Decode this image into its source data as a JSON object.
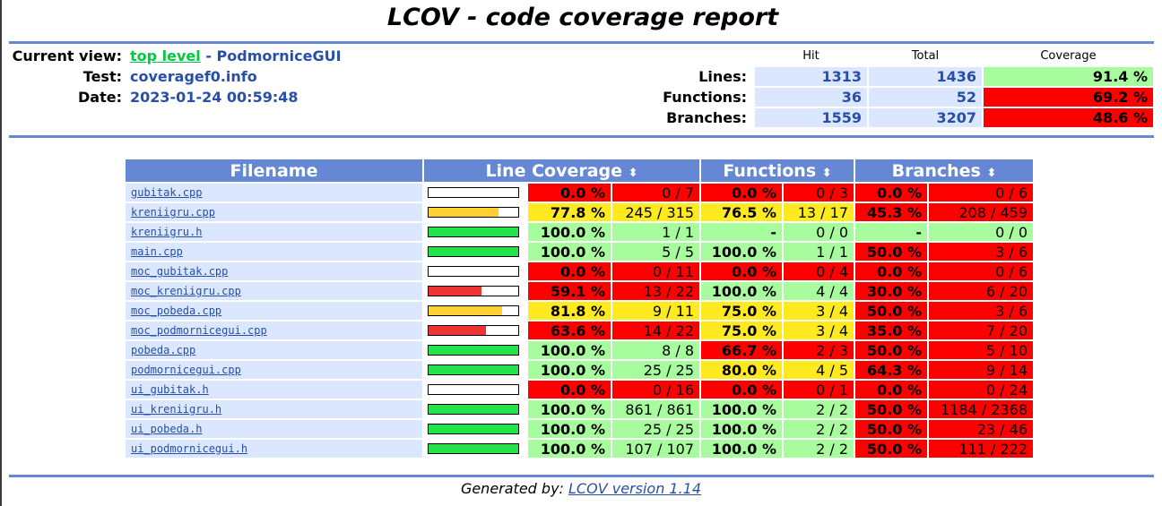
{
  "title": "LCOV - code coverage report",
  "info": {
    "current_view_label": "Current view:",
    "top_level_link": "top level",
    "view_separator": " - ",
    "view_name": "PodmorniceGUI",
    "test_label": "Test:",
    "test_value": "coveragef0.info",
    "date_label": "Date:",
    "date_value": "2023-01-24 00:59:48"
  },
  "summary": {
    "headers": {
      "hit": "Hit",
      "total": "Total",
      "coverage": "Coverage"
    },
    "rows": [
      {
        "label": "Lines:",
        "hit": "1313",
        "total": "1436",
        "coverage": "91.4 %",
        "level": "hi"
      },
      {
        "label": "Functions:",
        "hit": "36",
        "total": "52",
        "coverage": "69.2 %",
        "level": "lo"
      },
      {
        "label": "Branches:",
        "hit": "1559",
        "total": "3207",
        "coverage": "48.6 %",
        "level": "lo"
      }
    ]
  },
  "table": {
    "headers": {
      "filename": "Filename",
      "line": "Line Coverage",
      "functions": "Functions",
      "branches": "Branches"
    },
    "sort_glyph": "⬍",
    "rows": [
      {
        "file": "gubitak.cpp",
        "line_pct_value": 0.0,
        "line_pct": "0.0 %",
        "line_num": "0 / 7",
        "line_lvl": "lo",
        "fn_pct": "0.0 %",
        "fn_num": "0 / 3",
        "fn_lvl": "lo",
        "br_pct": "0.0 %",
        "br_num": "0 / 6",
        "br_lvl": "lo"
      },
      {
        "file": "kreniigru.cpp",
        "line_pct_value": 77.8,
        "line_pct": "77.8 %",
        "line_num": "245 / 315",
        "line_lvl": "med",
        "fn_pct": "76.5 %",
        "fn_num": "13 / 17",
        "fn_lvl": "med",
        "br_pct": "45.3 %",
        "br_num": "208 / 459",
        "br_lvl": "lo"
      },
      {
        "file": "kreniigru.h",
        "line_pct_value": 100.0,
        "line_pct": "100.0 %",
        "line_num": "1 / 1",
        "line_lvl": "hi",
        "fn_pct": "-",
        "fn_num": "0 / 0",
        "fn_lvl": "hi",
        "br_pct": "-",
        "br_num": "0 / 0",
        "br_lvl": "hi"
      },
      {
        "file": "main.cpp",
        "line_pct_value": 100.0,
        "line_pct": "100.0 %",
        "line_num": "5 / 5",
        "line_lvl": "hi",
        "fn_pct": "100.0 %",
        "fn_num": "1 / 1",
        "fn_lvl": "hi",
        "br_pct": "50.0 %",
        "br_num": "3 / 6",
        "br_lvl": "lo"
      },
      {
        "file": "moc_gubitak.cpp",
        "line_pct_value": 0.0,
        "line_pct": "0.0 %",
        "line_num": "0 / 11",
        "line_lvl": "lo",
        "fn_pct": "0.0 %",
        "fn_num": "0 / 4",
        "fn_lvl": "lo",
        "br_pct": "0.0 %",
        "br_num": "0 / 6",
        "br_lvl": "lo"
      },
      {
        "file": "moc_kreniigru.cpp",
        "line_pct_value": 59.1,
        "line_pct": "59.1 %",
        "line_num": "13 / 22",
        "line_lvl": "lo",
        "fn_pct": "100.0 %",
        "fn_num": "4 / 4",
        "fn_lvl": "hi",
        "br_pct": "30.0 %",
        "br_num": "6 / 20",
        "br_lvl": "lo"
      },
      {
        "file": "moc_pobeda.cpp",
        "line_pct_value": 81.8,
        "line_pct": "81.8 %",
        "line_num": "9 / 11",
        "line_lvl": "med",
        "fn_pct": "75.0 %",
        "fn_num": "3 / 4",
        "fn_lvl": "med",
        "br_pct": "50.0 %",
        "br_num": "3 / 6",
        "br_lvl": "lo"
      },
      {
        "file": "moc_podmornicegui.cpp",
        "line_pct_value": 63.6,
        "line_pct": "63.6 %",
        "line_num": "14 / 22",
        "line_lvl": "lo",
        "fn_pct": "75.0 %",
        "fn_num": "3 / 4",
        "fn_lvl": "med",
        "br_pct": "35.0 %",
        "br_num": "7 / 20",
        "br_lvl": "lo"
      },
      {
        "file": "pobeda.cpp",
        "line_pct_value": 100.0,
        "line_pct": "100.0 %",
        "line_num": "8 / 8",
        "line_lvl": "hi",
        "fn_pct": "66.7 %",
        "fn_num": "2 / 3",
        "fn_lvl": "lo",
        "br_pct": "50.0 %",
        "br_num": "5 / 10",
        "br_lvl": "lo"
      },
      {
        "file": "podmornicegui.cpp",
        "line_pct_value": 100.0,
        "line_pct": "100.0 %",
        "line_num": "25 / 25",
        "line_lvl": "hi",
        "fn_pct": "80.0 %",
        "fn_num": "4 / 5",
        "fn_lvl": "med",
        "br_pct": "64.3 %",
        "br_num": "9 / 14",
        "br_lvl": "lo"
      },
      {
        "file": "ui_gubitak.h",
        "line_pct_value": 0.0,
        "line_pct": "0.0 %",
        "line_num": "0 / 16",
        "line_lvl": "lo",
        "fn_pct": "0.0 %",
        "fn_num": "0 / 1",
        "fn_lvl": "lo",
        "br_pct": "0.0 %",
        "br_num": "0 / 24",
        "br_lvl": "lo"
      },
      {
        "file": "ui_kreniigru.h",
        "line_pct_value": 100.0,
        "line_pct": "100.0 %",
        "line_num": "861 / 861",
        "line_lvl": "hi",
        "fn_pct": "100.0 %",
        "fn_num": "2 / 2",
        "fn_lvl": "hi",
        "br_pct": "50.0 %",
        "br_num": "1184 / 2368",
        "br_lvl": "lo"
      },
      {
        "file": "ui_pobeda.h",
        "line_pct_value": 100.0,
        "line_pct": "100.0 %",
        "line_num": "25 / 25",
        "line_lvl": "hi",
        "fn_pct": "100.0 %",
        "fn_num": "2 / 2",
        "fn_lvl": "hi",
        "br_pct": "50.0 %",
        "br_num": "23 / 46",
        "br_lvl": "lo"
      },
      {
        "file": "ui_podmornicegui.h",
        "line_pct_value": 100.0,
        "line_pct": "100.0 %",
        "line_num": "107 / 107",
        "line_lvl": "hi",
        "fn_pct": "100.0 %",
        "fn_num": "2 / 2",
        "fn_lvl": "hi",
        "br_pct": "50.0 %",
        "br_num": "111 / 222",
        "br_lvl": "lo"
      }
    ]
  },
  "colors": {
    "hi": "#a7fc9d",
    "med": "#ffea20",
    "lo": "#ff0000",
    "bar_hi": "#22e44a",
    "bar_med": "#ffcf33",
    "bar_lo": "#ee3333"
  },
  "footer": {
    "prefix": "Generated by: ",
    "link": "LCOV version 1.14"
  }
}
